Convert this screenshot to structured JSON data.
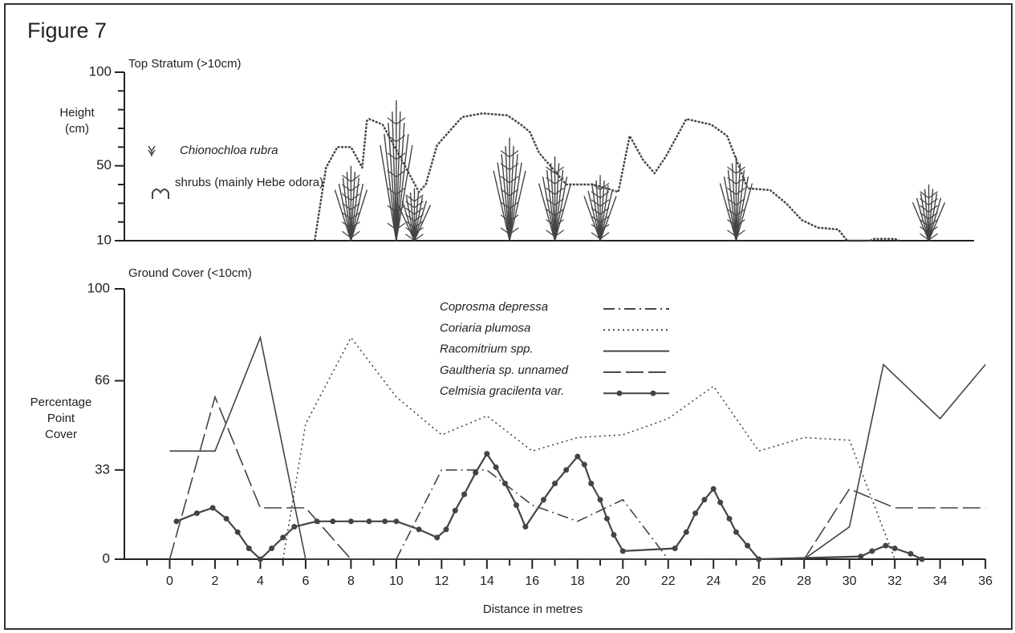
{
  "figure": "Figure 7",
  "chart_data": [
    {
      "type": "profile",
      "title": "Top Stratum (>10cm)",
      "ylabel": [
        "Height",
        "(cm)"
      ],
      "xlim": [
        -2,
        35.5
      ],
      "ylim": [
        10,
        100
      ],
      "yticks": [
        10,
        50,
        100
      ],
      "yminor_ticks": [
        20,
        30,
        40,
        60,
        70,
        80,
        90
      ],
      "color": "#444",
      "series": [
        {
          "name": "Chionochloa rubra",
          "marker": "tussock",
          "x": [
            8,
            10,
            10.8,
            15,
            17,
            19,
            25,
            33.5
          ],
          "values": [
            50,
            85,
            38,
            65,
            55,
            45,
            55,
            40
          ]
        },
        {
          "name": "shrubs (mainly Hebe odora)",
          "marker": "outline",
          "x": [
            6.4,
            6.9,
            7.4,
            8.0,
            8.5,
            8.7,
            8.8,
            9.4,
            11,
            11.3,
            11.8,
            12.9,
            13.8,
            14.9,
            15.5,
            15.9,
            16.3,
            17.5,
            18.7,
            19.8,
            20.3,
            20.9,
            21.4,
            21.9,
            22.8,
            23.9,
            24.6,
            25.5,
            26.5,
            27.2,
            27.9,
            28.6,
            29.5,
            29.9,
            30.9,
            31.1,
            32.0,
            32.2
          ],
          "values": [
            10,
            49,
            60,
            60,
            49,
            74,
            75,
            72,
            36,
            40,
            61,
            76,
            78,
            77,
            72,
            68,
            57,
            40,
            40,
            36,
            66,
            53,
            46,
            55,
            75,
            72,
            66,
            38,
            37,
            30,
            21,
            17,
            16,
            10,
            10,
            11,
            11,
            10
          ]
        }
      ]
    },
    {
      "type": "line",
      "title": "Ground Cover (<10cm)",
      "ylabel": [
        "Percentage",
        "Point",
        "Cover"
      ],
      "xlabel": "Distance in metres",
      "xlim": [
        -2,
        36
      ],
      "ylim": [
        0,
        100
      ],
      "xticks": [
        0,
        2,
        4,
        6,
        8,
        10,
        12,
        14,
        16,
        18,
        20,
        22,
        24,
        26,
        28,
        30,
        32,
        34,
        36
      ],
      "xminor_ticks": [
        -1,
        1,
        3,
        5,
        7,
        9,
        11,
        13,
        15,
        17,
        19,
        21,
        23,
        25,
        27,
        29,
        31,
        33,
        35
      ],
      "yticks": [
        0,
        33,
        66,
        100
      ],
      "series": [
        {
          "name": "Coprosma depressa",
          "dash": "dashdot",
          "color": "#444",
          "x": [
            10,
            12,
            14,
            16,
            18,
            20,
            22
          ],
          "values": [
            0,
            33,
            33,
            20,
            14,
            22,
            0
          ]
        },
        {
          "name": "Coriaria plumosa",
          "dash": "dotted",
          "color": "#444",
          "x": [
            5,
            6,
            8,
            10,
            12,
            14,
            16,
            18,
            20,
            22,
            24,
            26,
            28,
            30,
            32
          ],
          "values": [
            0,
            50,
            82,
            60,
            46,
            53,
            40,
            45,
            46,
            52,
            64,
            40,
            45,
            44,
            0
          ]
        },
        {
          "name": "Racomitrium spp.",
          "dash": "solid",
          "color": "#444",
          "x": [
            0,
            2,
            4,
            6,
            28,
            30,
            31.5,
            34,
            36
          ],
          "values": [
            40,
            40,
            82,
            0,
            0,
            12,
            72,
            52,
            72
          ]
        },
        {
          "name": "Gaultheria sp. unnamed",
          "dash": "dashed",
          "color": "#444",
          "x": [
            0,
            2,
            4,
            6,
            8,
            28,
            30,
            32,
            36
          ],
          "values": [
            0,
            60,
            19,
            19,
            0,
            0,
            26,
            19,
            19
          ]
        },
        {
          "name": "Celmisia gracilenta var.",
          "dash": "solid",
          "color": "#444",
          "markers": true,
          "x": [
            0.3,
            1.2,
            1.9,
            2.5,
            3,
            3.5,
            4,
            4.5,
            5,
            5.5,
            6.5,
            7.2,
            8,
            8.8,
            9.5,
            10,
            11,
            11.8,
            12.2,
            12.6,
            13,
            13.5,
            14,
            14.4,
            14.8,
            15.3,
            15.7,
            16.5,
            17,
            17.5,
            18,
            18.3,
            18.6,
            19,
            19.3,
            19.6,
            20,
            22.3,
            22.8,
            23.2,
            23.6,
            24,
            24.3,
            24.7,
            25,
            25.5,
            26,
            30.5,
            31,
            31.6,
            32,
            32.7,
            33.2
          ],
          "values": [
            14,
            17,
            19,
            15,
            10,
            4,
            0,
            4,
            8,
            12,
            14,
            14,
            14,
            14,
            14,
            14,
            11,
            8,
            11,
            18,
            24,
            32,
            39,
            34,
            28,
            20,
            12,
            22,
            28,
            33,
            38,
            35,
            28,
            22,
            15,
            9,
            3,
            4,
            10,
            17,
            22,
            26,
            21,
            15,
            10,
            5,
            0,
            1,
            3,
            5,
            4,
            2,
            0
          ]
        }
      ]
    }
  ]
}
